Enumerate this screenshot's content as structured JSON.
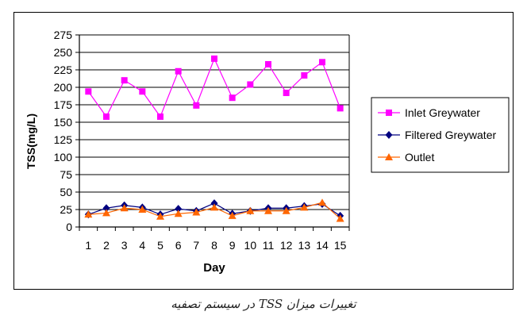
{
  "chart_data": {
    "type": "line",
    "title": "",
    "xlabel": "Day",
    "ylabel": "TSS(mg/L)",
    "x": [
      1,
      2,
      3,
      4,
      5,
      6,
      7,
      8,
      9,
      10,
      11,
      12,
      13,
      14,
      15
    ],
    "ylim": [
      0,
      275
    ],
    "yticks": [
      0,
      25,
      50,
      75,
      100,
      125,
      150,
      175,
      200,
      225,
      250,
      275
    ],
    "grid": "horizontal",
    "legend_position": "right",
    "series": [
      {
        "name": "Inlet Greywater",
        "color": "#ff00ff",
        "marker": "square",
        "values": [
          194,
          158,
          210,
          194,
          158,
          223,
          174,
          241,
          185,
          204,
          233,
          192,
          217,
          236,
          170
        ]
      },
      {
        "name": "Filtered Greywater",
        "color": "#000080",
        "marker": "diamond",
        "values": [
          18,
          27,
          31,
          28,
          18,
          26,
          23,
          34,
          19,
          23,
          27,
          27,
          30,
          33,
          16
        ]
      },
      {
        "name": "Outlet",
        "color": "#ff6600",
        "marker": "triangle",
        "values": [
          18,
          20,
          27,
          25,
          15,
          19,
          21,
          28,
          16,
          23,
          23,
          23,
          28,
          35,
          12
        ]
      }
    ]
  },
  "caption": "تغییرات میزان TSS در سیستم تصفیه"
}
